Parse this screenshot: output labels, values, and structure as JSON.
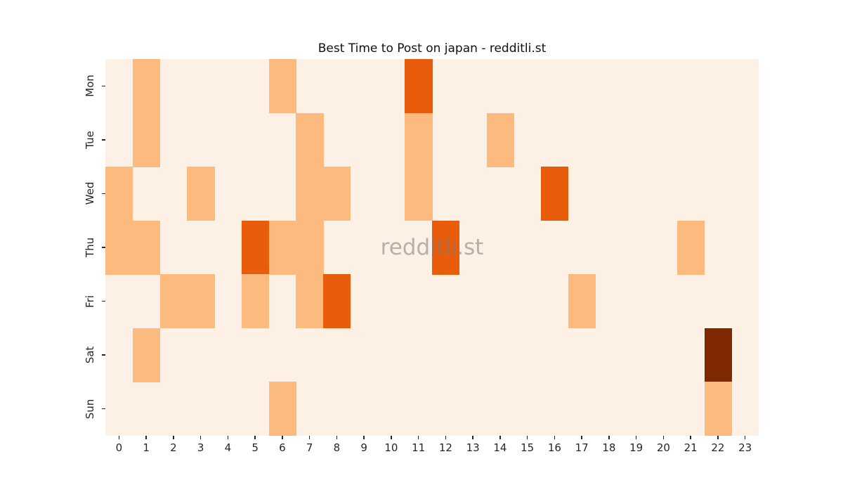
{
  "title": "Best Time to Post on japan - redditli.st",
  "watermark": "redditli.st",
  "colors": {
    "figure_background": "#ffffff",
    "zero_cell": "#fdf0e5",
    "level_1": "#fdba7e",
    "level_2": "#e85c0c",
    "level_3": "#7f2904",
    "tick": "#262626",
    "watermark_gray": "#b3b1b1"
  },
  "chart_data": {
    "type": "heatmap",
    "title": "Best Time to Post on japan - redditli.st",
    "xlabel": "",
    "ylabel": "",
    "x_labels": [
      "0",
      "1",
      "2",
      "3",
      "4",
      "5",
      "6",
      "7",
      "8",
      "9",
      "10",
      "11",
      "12",
      "13",
      "14",
      "15",
      "16",
      "17",
      "18",
      "19",
      "20",
      "21",
      "22",
      "23"
    ],
    "y_labels": [
      "Mon",
      "Tue",
      "Wed",
      "Thu",
      "Fri",
      "Sat",
      "Sun"
    ],
    "colormap": "Oranges",
    "legend": false,
    "grid": false,
    "level_colors": {
      "0": "#fdf0e5",
      "1": "#fdba7e",
      "2": "#e85c0c",
      "3": "#7f2904"
    },
    "matrix": [
      [
        0,
        1,
        0,
        0,
        0,
        0,
        1,
        0,
        0,
        0,
        0,
        2,
        0,
        0,
        0,
        0,
        0,
        0,
        0,
        0,
        0,
        0,
        0,
        0
      ],
      [
        0,
        1,
        0,
        0,
        0,
        0,
        0,
        1,
        0,
        0,
        0,
        1,
        0,
        0,
        1,
        0,
        0,
        0,
        0,
        0,
        0,
        0,
        0,
        0
      ],
      [
        1,
        0,
        0,
        1,
        0,
        0,
        0,
        1,
        1,
        0,
        0,
        1,
        0,
        0,
        0,
        0,
        2,
        0,
        0,
        0,
        0,
        0,
        0,
        0
      ],
      [
        1,
        1,
        0,
        0,
        0,
        2,
        1,
        1,
        0,
        0,
        0,
        0,
        2,
        0,
        0,
        0,
        0,
        0,
        0,
        0,
        0,
        1,
        0,
        0
      ],
      [
        0,
        0,
        1,
        1,
        0,
        1,
        0,
        1,
        2,
        0,
        0,
        0,
        0,
        0,
        0,
        0,
        0,
        1,
        0,
        0,
        0,
        0,
        0,
        0
      ],
      [
        0,
        1,
        0,
        0,
        0,
        0,
        0,
        0,
        0,
        0,
        0,
        0,
        0,
        0,
        0,
        0,
        0,
        0,
        0,
        0,
        0,
        0,
        3,
        0
      ],
      [
        0,
        0,
        0,
        0,
        0,
        0,
        1,
        0,
        0,
        0,
        0,
        0,
        0,
        0,
        0,
        0,
        0,
        0,
        0,
        0,
        0,
        0,
        1,
        0
      ]
    ],
    "cells_nonzero": [
      {
        "day": "Mon",
        "hour": 1,
        "level": 1
      },
      {
        "day": "Mon",
        "hour": 6,
        "level": 1
      },
      {
        "day": "Mon",
        "hour": 11,
        "level": 2
      },
      {
        "day": "Tue",
        "hour": 1,
        "level": 1
      },
      {
        "day": "Tue",
        "hour": 7,
        "level": 1
      },
      {
        "day": "Tue",
        "hour": 11,
        "level": 1
      },
      {
        "day": "Tue",
        "hour": 14,
        "level": 1
      },
      {
        "day": "Wed",
        "hour": 0,
        "level": 1
      },
      {
        "day": "Wed",
        "hour": 3,
        "level": 1
      },
      {
        "day": "Wed",
        "hour": 7,
        "level": 1
      },
      {
        "day": "Wed",
        "hour": 8,
        "level": 1
      },
      {
        "day": "Wed",
        "hour": 11,
        "level": 1
      },
      {
        "day": "Wed",
        "hour": 16,
        "level": 2
      },
      {
        "day": "Thu",
        "hour": 0,
        "level": 1
      },
      {
        "day": "Thu",
        "hour": 1,
        "level": 1
      },
      {
        "day": "Thu",
        "hour": 5,
        "level": 2
      },
      {
        "day": "Thu",
        "hour": 6,
        "level": 1
      },
      {
        "day": "Thu",
        "hour": 7,
        "level": 1
      },
      {
        "day": "Thu",
        "hour": 12,
        "level": 2
      },
      {
        "day": "Thu",
        "hour": 21,
        "level": 1
      },
      {
        "day": "Fri",
        "hour": 2,
        "level": 1
      },
      {
        "day": "Fri",
        "hour": 3,
        "level": 1
      },
      {
        "day": "Fri",
        "hour": 5,
        "level": 1
      },
      {
        "day": "Fri",
        "hour": 7,
        "level": 1
      },
      {
        "day": "Fri",
        "hour": 8,
        "level": 2
      },
      {
        "day": "Fri",
        "hour": 17,
        "level": 1
      },
      {
        "day": "Sat",
        "hour": 1,
        "level": 1
      },
      {
        "day": "Sat",
        "hour": 22,
        "level": 3
      },
      {
        "day": "Sun",
        "hour": 6,
        "level": 1
      },
      {
        "day": "Sun",
        "hour": 22,
        "level": 1
      }
    ],
    "annotations": [
      {
        "text": "redditli.st",
        "position": "center"
      }
    ]
  }
}
